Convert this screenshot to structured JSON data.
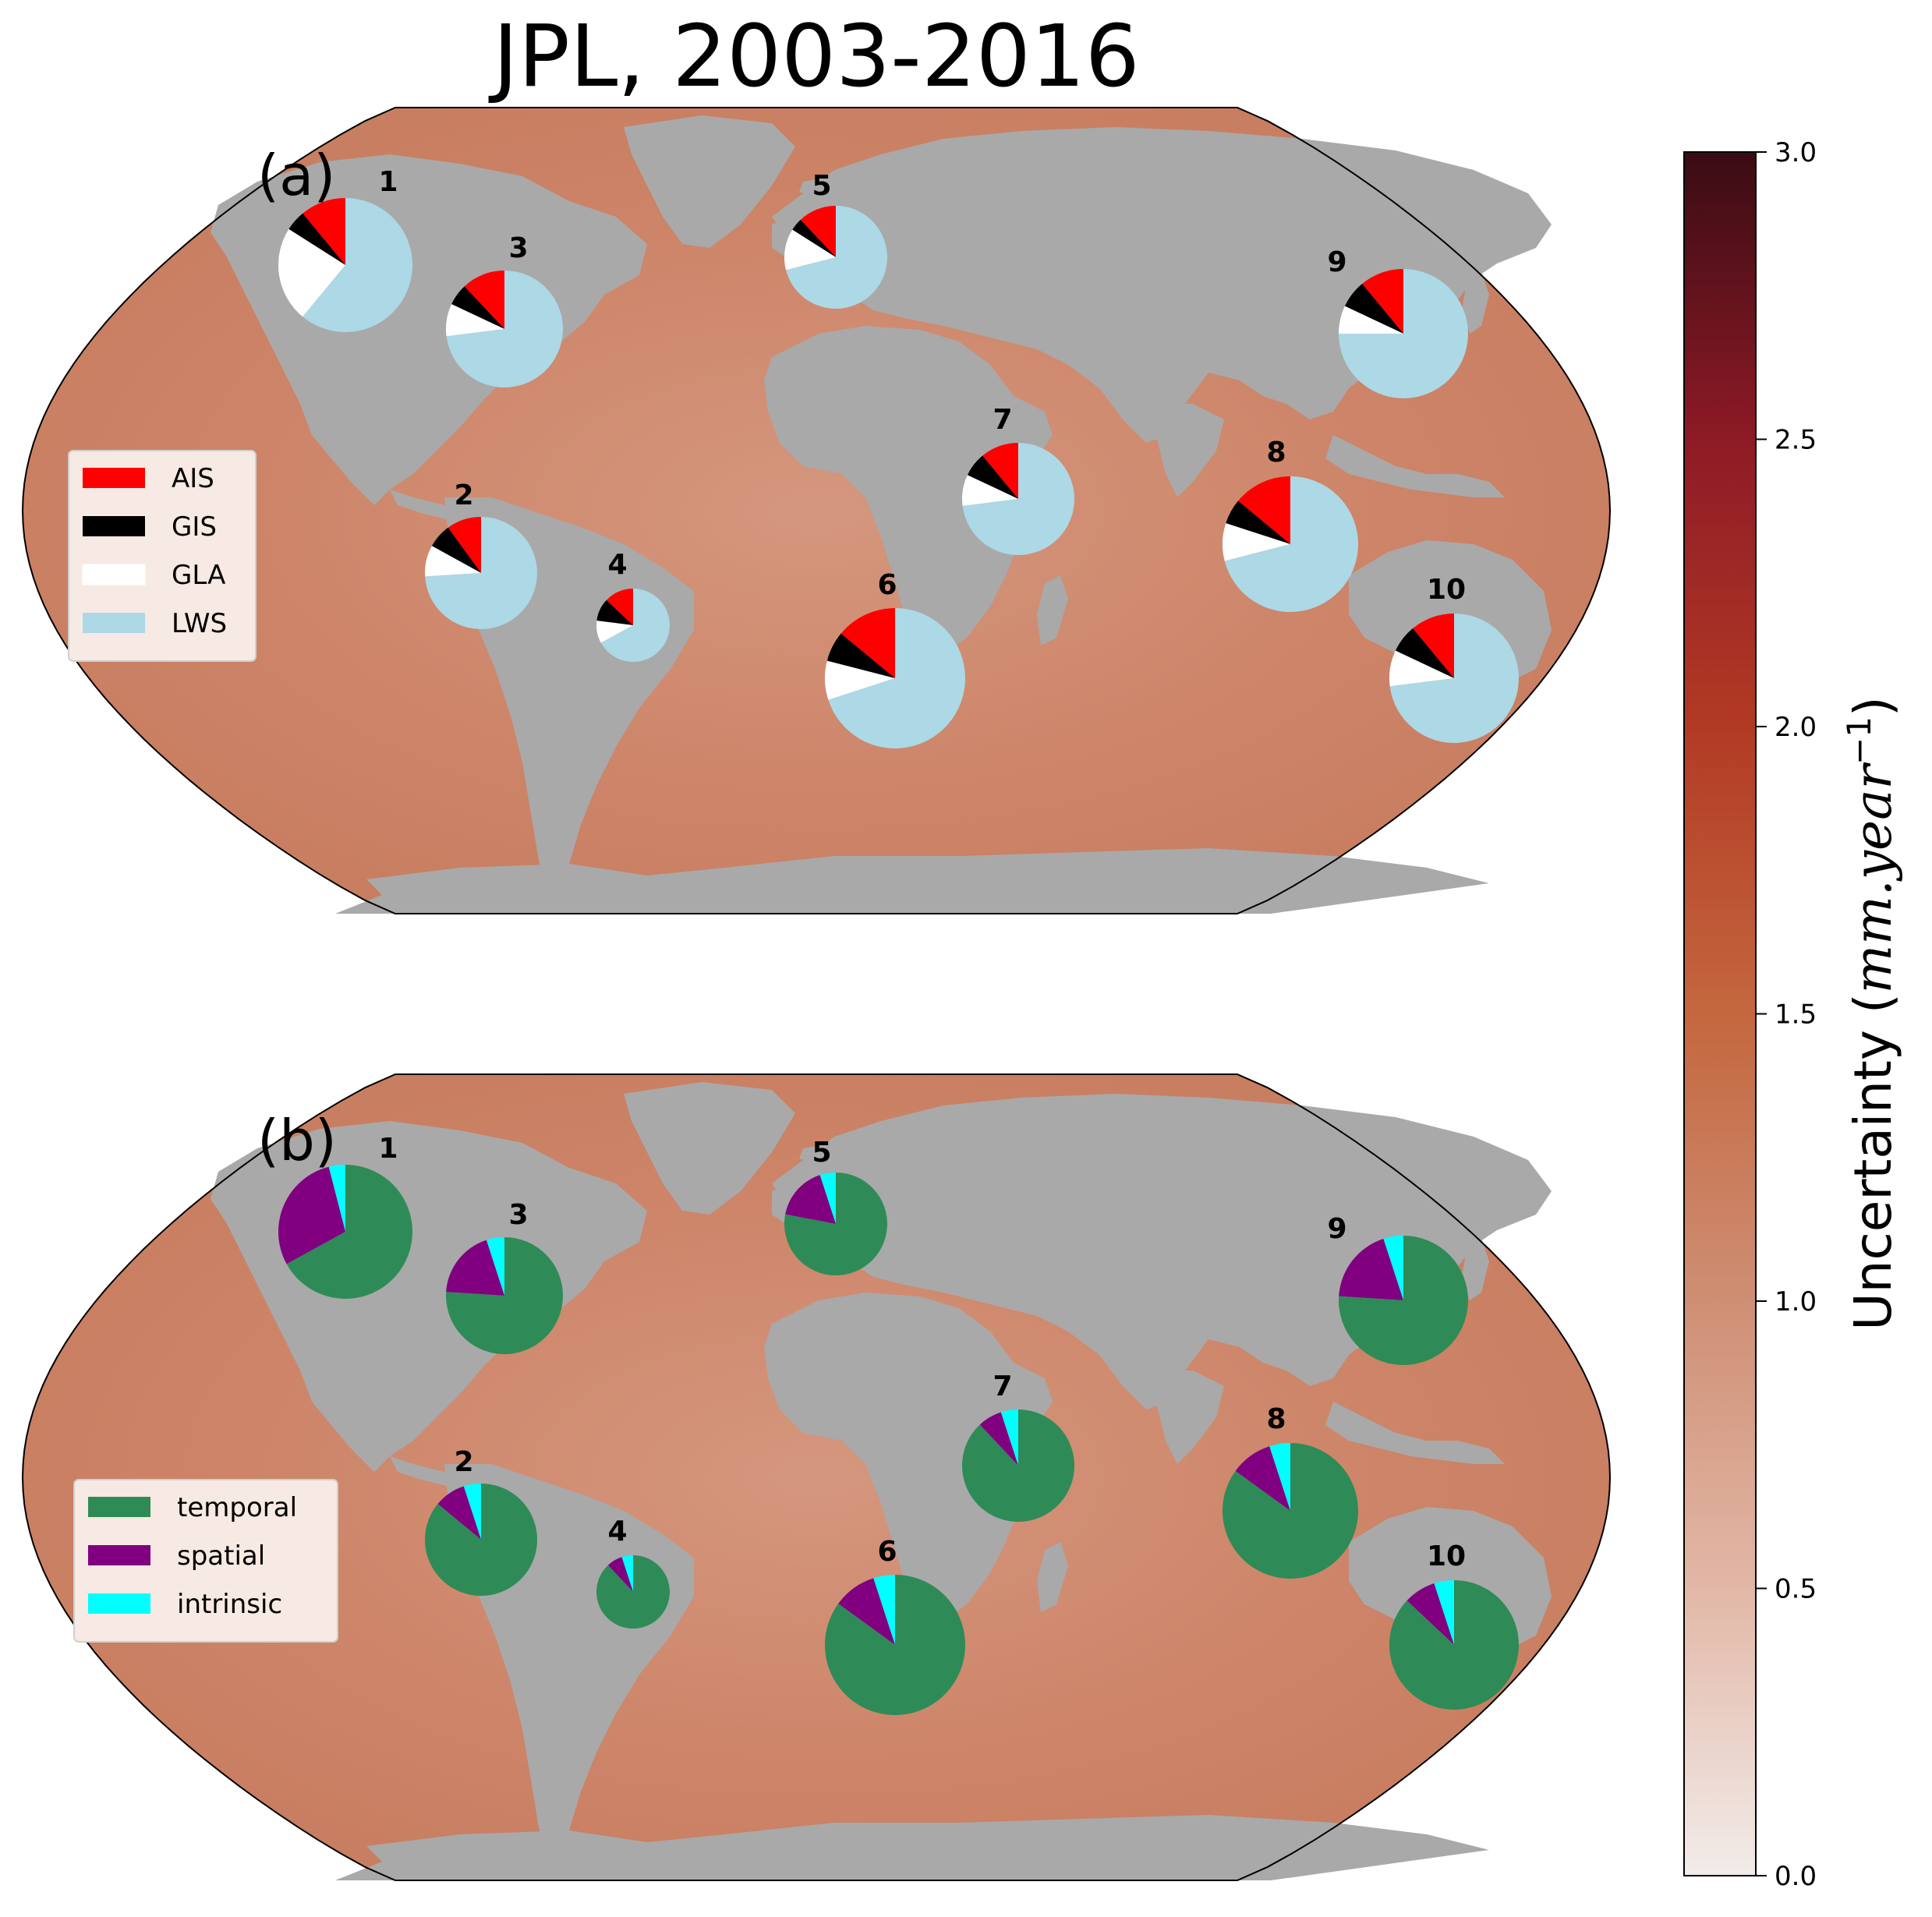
{
  "figure": {
    "title": "JPL, 2003-2016"
  },
  "colorbar": {
    "label_main": "Uncertainty (",
    "label_units": "mm.year",
    "label_exp": "−1",
    "label_close": ")",
    "ticks": [
      "0.0",
      "0.5",
      "1.0",
      "1.5",
      "2.0",
      "2.5",
      "3.0"
    ],
    "tick_values": [
      0.0,
      0.5,
      1.0,
      1.5,
      2.0,
      2.5,
      3.0
    ],
    "range": [
      0.0,
      3.0
    ],
    "colors": [
      "#f2ecea",
      "#e2b7a6",
      "#cf8f74",
      "#c4673f",
      "#b23a24",
      "#8e1a26",
      "#3a0c14"
    ]
  },
  "colors": {
    "land": "#a9a9a9",
    "ocean": "#cd8468",
    "AIS": "#ff0000",
    "GIS": "#000000",
    "GLA": "#ffffff",
    "LWS": "#add8e6",
    "temporal": "#2e8b57",
    "spatial": "#800080",
    "intrinsic": "#00ffff"
  },
  "panels": [
    {
      "label": "(a)",
      "legend": [
        "AIS",
        "GIS",
        "GLA",
        "LWS"
      ],
      "components": [
        "AIS",
        "GIS",
        "GLA",
        "LWS"
      ],
      "regions": [
        {
          "id": "1",
          "fractions": [
            0.11,
            0.05,
            0.23,
            0.61
          ]
        },
        {
          "id": "2",
          "fractions": [
            0.1,
            0.07,
            0.09,
            0.74
          ]
        },
        {
          "id": "3",
          "fractions": [
            0.12,
            0.06,
            0.09,
            0.73
          ]
        },
        {
          "id": "4",
          "fractions": [
            0.13,
            0.1,
            0.1,
            0.67
          ]
        },
        {
          "id": "5",
          "fractions": [
            0.12,
            0.04,
            0.13,
            0.71
          ]
        },
        {
          "id": "6",
          "fractions": [
            0.14,
            0.07,
            0.09,
            0.7
          ]
        },
        {
          "id": "7",
          "fractions": [
            0.11,
            0.07,
            0.09,
            0.73
          ]
        },
        {
          "id": "8",
          "fractions": [
            0.14,
            0.06,
            0.09,
            0.71
          ]
        },
        {
          "id": "9",
          "fractions": [
            0.11,
            0.07,
            0.07,
            0.75
          ]
        },
        {
          "id": "10",
          "fractions": [
            0.11,
            0.07,
            0.09,
            0.73
          ]
        }
      ]
    },
    {
      "label": "(b)",
      "legend": [
        "temporal",
        "spatial",
        "intrinsic"
      ],
      "components": [
        "intrinsic",
        "spatial",
        "temporal"
      ],
      "regions": [
        {
          "id": "1",
          "fractions": [
            0.04,
            0.29,
            0.67
          ]
        },
        {
          "id": "2",
          "fractions": [
            0.05,
            0.09,
            0.86
          ]
        },
        {
          "id": "3",
          "fractions": [
            0.05,
            0.19,
            0.76
          ]
        },
        {
          "id": "4",
          "fractions": [
            0.05,
            0.07,
            0.88
          ]
        },
        {
          "id": "5",
          "fractions": [
            0.05,
            0.17,
            0.78
          ]
        },
        {
          "id": "6",
          "fractions": [
            0.05,
            0.1,
            0.85
          ]
        },
        {
          "id": "7",
          "fractions": [
            0.05,
            0.07,
            0.88
          ]
        },
        {
          "id": "8",
          "fractions": [
            0.05,
            0.1,
            0.85
          ]
        },
        {
          "id": "9",
          "fractions": [
            0.05,
            0.19,
            0.76
          ]
        },
        {
          "id": "10",
          "fractions": [
            0.05,
            0.08,
            0.87
          ]
        }
      ]
    }
  ]
}
